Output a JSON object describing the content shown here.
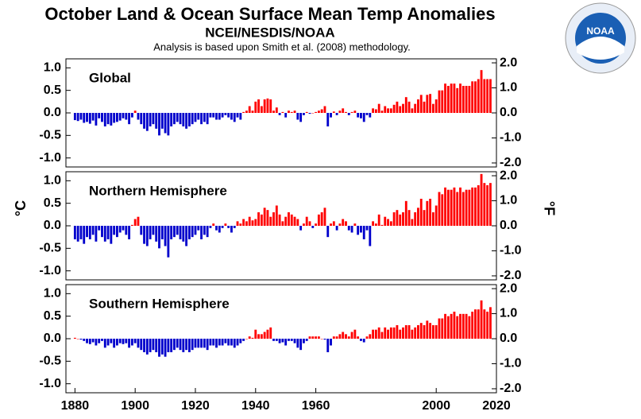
{
  "title": "October Land & Ocean Surface Mean Temp Anomalies",
  "subtitle": "NCEI/NESDIS/NOAA",
  "note": "Analysis is based upon Smith et al. (2008) methodology.",
  "ylabel": "°C",
  "y2label": "°F",
  "logo_text": "NOAA",
  "positive_color": "#ff0000",
  "negative_color": "#0000cc",
  "chart_data": [
    {
      "type": "bar",
      "name": "Global",
      "xstart": 1880,
      "xlim": [
        1877,
        2020
      ],
      "ylim": [
        -1.2,
        1.2
      ],
      "y2lim": [
        -2.16,
        2.16
      ],
      "yticks": [
        {
          "value": 1,
          "label": "1.0"
        },
        {
          "value": 0.5,
          "label": "0.5"
        },
        {
          "value": 0,
          "label": "0.0"
        },
        {
          "value": -0.5,
          "label": "-0.5"
        },
        {
          "value": -1,
          "label": "-1.0"
        }
      ],
      "y2ticks": [
        {
          "value": 2,
          "label": "2.0"
        },
        {
          "value": 1,
          "label": "1.0"
        },
        {
          "value": 0,
          "label": "0.0"
        },
        {
          "value": -1,
          "label": "-1.0"
        },
        {
          "value": -2,
          "label": "-2.0"
        }
      ],
      "values": [
        -0.16,
        -0.18,
        -0.15,
        -0.22,
        -0.2,
        -0.24,
        -0.17,
        -0.28,
        -0.12,
        -0.2,
        -0.3,
        -0.25,
        -0.28,
        -0.22,
        -0.2,
        -0.17,
        -0.12,
        -0.15,
        -0.25,
        -0.1,
        0.05,
        -0.15,
        -0.25,
        -0.35,
        -0.4,
        -0.3,
        -0.25,
        -0.35,
        -0.5,
        -0.35,
        -0.45,
        -0.5,
        -0.3,
        -0.25,
        -0.2,
        -0.25,
        -0.3,
        -0.35,
        -0.3,
        -0.25,
        -0.2,
        -0.15,
        -0.25,
        -0.2,
        -0.25,
        -0.1,
        -0.1,
        -0.15,
        -0.15,
        -0.1,
        -0.05,
        -0.1,
        -0.15,
        -0.2,
        -0.1,
        -0.15,
        0.02,
        0.05,
        0.15,
        0.05,
        0.25,
        0.3,
        0.15,
        0.3,
        0.32,
        0.3,
        0.05,
        0.12,
        -0.05,
        0.02,
        -0.1,
        0.05,
        0.02,
        0.05,
        -0.15,
        -0.2,
        -0.05,
        0.02,
        -0.02,
        0.0,
        0.02,
        0.05,
        0.08,
        0.15,
        -0.3,
        -0.1,
        0.03,
        -0.05,
        0.05,
        0.1,
        0.02,
        -0.05,
        0.02,
        0.05,
        -0.1,
        -0.12,
        -0.2,
        -0.05,
        -0.1,
        0.1,
        0.08,
        0.2,
        0.05,
        0.15,
        0.1,
        0.1,
        0.18,
        0.25,
        0.15,
        0.2,
        0.35,
        0.25,
        0.1,
        0.2,
        0.3,
        0.4,
        0.25,
        0.4,
        0.42,
        0.2,
        0.3,
        0.5,
        0.5,
        0.65,
        0.6,
        0.65,
        0.65,
        0.55,
        0.65,
        0.6,
        0.6,
        0.6,
        0.7,
        0.7,
        0.75,
        0.95,
        0.75,
        0.75,
        0.75
      ]
    },
    {
      "type": "bar",
      "name": "Northern Hemisphere",
      "xstart": 1880,
      "xlim": [
        1877,
        2020
      ],
      "ylim": [
        -1.2,
        1.2
      ],
      "y2lim": [
        -2.16,
        2.16
      ],
      "yticks": [
        {
          "value": 1,
          "label": "1.0"
        },
        {
          "value": 0.5,
          "label": "0.5"
        },
        {
          "value": 0,
          "label": "0.0"
        },
        {
          "value": -0.5,
          "label": "-0.5"
        },
        {
          "value": -1,
          "label": "-1.0"
        }
      ],
      "y2ticks": [
        {
          "value": 2,
          "label": "2.0"
        },
        {
          "value": 1,
          "label": "1.0"
        },
        {
          "value": 0,
          "label": "0.0"
        },
        {
          "value": -1,
          "label": "-1.0"
        },
        {
          "value": -2,
          "label": "-2.0"
        }
      ],
      "values": [
        -0.3,
        -0.35,
        -0.3,
        -0.4,
        -0.25,
        -0.3,
        -0.2,
        -0.35,
        -0.1,
        -0.25,
        -0.35,
        -0.3,
        -0.4,
        -0.2,
        -0.25,
        -0.15,
        -0.1,
        -0.2,
        -0.3,
        0.02,
        0.15,
        0.2,
        -0.2,
        -0.4,
        -0.45,
        -0.3,
        -0.2,
        -0.35,
        -0.5,
        -0.3,
        -0.45,
        -0.7,
        -0.3,
        -0.25,
        -0.2,
        -0.3,
        -0.35,
        -0.45,
        -0.3,
        -0.25,
        -0.2,
        -0.1,
        -0.3,
        -0.2,
        -0.25,
        -0.05,
        0.05,
        -0.1,
        -0.15,
        -0.05,
        0.05,
        -0.05,
        -0.15,
        -0.05,
        0.1,
        0.05,
        0.15,
        0.1,
        0.2,
        0.12,
        0.15,
        0.3,
        0.25,
        0.4,
        0.35,
        0.2,
        0.3,
        0.45,
        0.25,
        0.1,
        0.2,
        0.3,
        0.25,
        0.2,
        0.15,
        -0.1,
        0.05,
        0.2,
        0.1,
        -0.05,
        0.05,
        0.25,
        0.3,
        0.4,
        -0.25,
        0.05,
        0.1,
        -0.1,
        0.05,
        0.15,
        0.1,
        -0.1,
        -0.15,
        0.05,
        -0.2,
        -0.15,
        -0.3,
        -0.1,
        -0.45,
        0.1,
        0.05,
        0.25,
        0.02,
        0.2,
        0.15,
        0.1,
        0.3,
        0.35,
        0.25,
        0.3,
        0.55,
        0.35,
        0.15,
        0.3,
        0.4,
        0.6,
        0.35,
        0.55,
        0.6,
        0.3,
        0.45,
        0.75,
        0.7,
        0.85,
        0.8,
        0.8,
        0.85,
        0.75,
        0.85,
        0.75,
        0.8,
        0.8,
        0.85,
        0.85,
        0.9,
        1.15,
        0.95,
        0.9,
        0.95
      ]
    },
    {
      "type": "bar",
      "name": "Southern Hemisphere",
      "xstart": 1880,
      "xlim": [
        1877,
        2020
      ],
      "ylim": [
        -1.2,
        1.2
      ],
      "y2lim": [
        -2.16,
        2.16
      ],
      "yticks": [
        {
          "value": 1,
          "label": "1.0"
        },
        {
          "value": 0.5,
          "label": "0.5"
        },
        {
          "value": 0,
          "label": "0.0"
        },
        {
          "value": -0.5,
          "label": "-0.5"
        },
        {
          "value": -1,
          "label": "-1.0"
        }
      ],
      "y2ticks": [
        {
          "value": 2,
          "label": "2.0"
        },
        {
          "value": 1,
          "label": "1.0"
        },
        {
          "value": 0,
          "label": "0.0"
        },
        {
          "value": -1,
          "label": "-1.0"
        },
        {
          "value": -2,
          "label": "-2.0"
        }
      ],
      "xticks": [
        1880,
        1900,
        1920,
        1940,
        1960,
        2000,
        2020
      ],
      "values": [
        0.02,
        0.0,
        -0.02,
        -0.05,
        -0.1,
        -0.12,
        -0.08,
        -0.15,
        -0.1,
        -0.05,
        -0.2,
        -0.15,
        -0.1,
        -0.2,
        -0.15,
        -0.1,
        -0.12,
        -0.1,
        -0.2,
        -0.15,
        -0.1,
        -0.2,
        -0.25,
        -0.3,
        -0.35,
        -0.3,
        -0.25,
        -0.3,
        -0.4,
        -0.35,
        -0.4,
        -0.3,
        -0.3,
        -0.25,
        -0.2,
        -0.25,
        -0.3,
        -0.25,
        -0.3,
        -0.25,
        -0.2,
        -0.2,
        -0.2,
        -0.2,
        -0.25,
        -0.15,
        -0.15,
        -0.2,
        -0.15,
        -0.15,
        -0.1,
        -0.15,
        -0.15,
        -0.2,
        -0.15,
        -0.1,
        -0.05,
        0.0,
        0.05,
        0.02,
        0.2,
        0.1,
        0.1,
        0.15,
        0.2,
        0.25,
        -0.05,
        -0.05,
        -0.1,
        -0.08,
        -0.15,
        -0.05,
        -0.05,
        -0.1,
        -0.2,
        -0.25,
        -0.1,
        -0.05,
        0.05,
        0.05,
        0.05,
        0.05,
        0.0,
        -0.02,
        -0.3,
        -0.15,
        0.05,
        0.05,
        0.1,
        0.15,
        0.1,
        0.05,
        0.15,
        0.2,
        0.05,
        -0.05,
        -0.08,
        0.05,
        0.1,
        0.2,
        0.2,
        0.25,
        0.15,
        0.25,
        0.2,
        0.25,
        0.25,
        0.3,
        0.2,
        0.25,
        0.3,
        0.3,
        0.2,
        0.25,
        0.3,
        0.35,
        0.3,
        0.4,
        0.35,
        0.3,
        0.3,
        0.45,
        0.45,
        0.55,
        0.5,
        0.55,
        0.6,
        0.5,
        0.55,
        0.55,
        0.55,
        0.5,
        0.6,
        0.65,
        0.65,
        0.85,
        0.65,
        0.6,
        0.7
      ]
    }
  ]
}
